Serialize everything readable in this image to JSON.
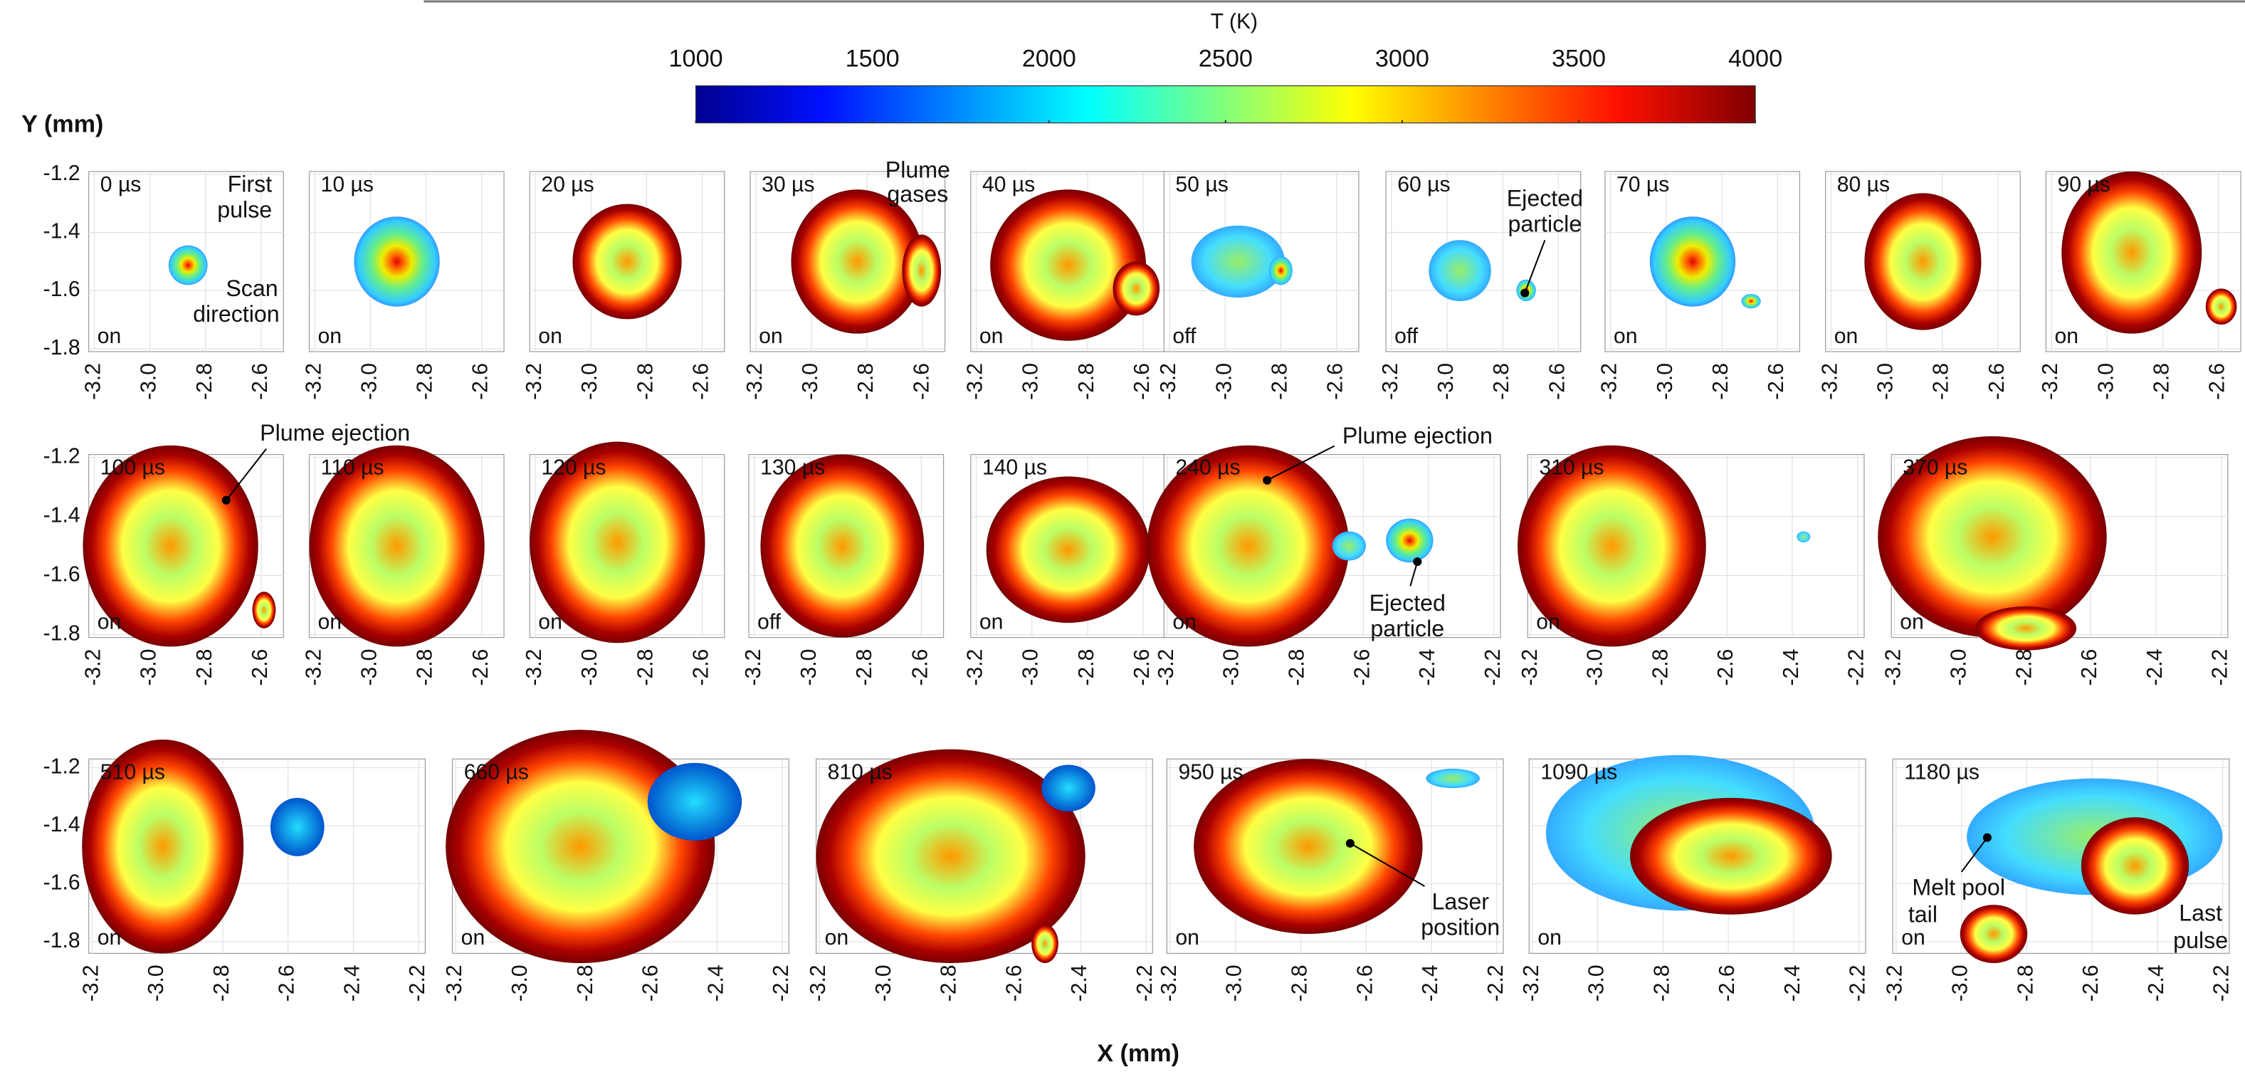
{
  "colorbar": {
    "label": "T (K)",
    "lim": [
      1000,
      4000
    ],
    "ticks": [
      1000,
      1500,
      2000,
      2500,
      3000,
      3500,
      4000
    ]
  },
  "y_label": "Y (mm)",
  "x_label": "X (mm)",
  "rows": [
    {
      "ylim": [
        -1.81,
        -1.19
      ],
      "yticks": [
        -1.2,
        -1.4,
        -1.6,
        -1.8
      ],
      "panels": [
        {
          "time": "0 µs",
          "state": "on",
          "xlim": [
            -3.22,
            -2.52
          ],
          "xticks": [
            -3.2,
            {
              "value": -3,
              "label": "-3.0"
            },
            -2.8,
            -2.6
          ]
        },
        {
          "time": "10 µs",
          "state": "on",
          "xlim": [
            -3.22,
            -2.52
          ],
          "xticks": [
            -3.2,
            {
              "value": -3,
              "label": "-3.0"
            },
            -2.8,
            -2.6
          ]
        },
        {
          "time": "20 µs",
          "state": "on",
          "xlim": [
            -3.22,
            -2.52
          ],
          "xticks": [
            -3.2,
            {
              "value": -3,
              "label": "-3.0"
            },
            -2.8,
            -2.6
          ]
        },
        {
          "time": "30 µs",
          "state": "on",
          "xlim": [
            -3.22,
            -2.52
          ],
          "xticks": [
            -3.2,
            {
              "value": -3,
              "label": "-3.0"
            },
            -2.8,
            -2.6
          ]
        },
        {
          "time": "40 µs",
          "state": "on",
          "xlim": [
            -3.22,
            -2.52
          ],
          "xticks": [
            -3.2,
            {
              "value": -3,
              "label": "-3.0"
            },
            -2.8,
            -2.6
          ]
        },
        {
          "time": "50 µs",
          "state": "off",
          "xlim": [
            -3.22,
            -2.52
          ],
          "xticks": [
            -3.2,
            {
              "value": -3,
              "label": "-3.0"
            },
            -2.8,
            -2.6
          ]
        },
        {
          "time": "60 µs",
          "state": "off",
          "xlim": [
            -3.22,
            -2.52
          ],
          "xticks": [
            -3.2,
            {
              "value": -3,
              "label": "-3.0"
            },
            -2.8,
            -2.6
          ]
        },
        {
          "time": "70 µs",
          "state": "on",
          "xlim": [
            -3.22,
            -2.52
          ],
          "xticks": [
            -3.2,
            {
              "value": -3,
              "label": "-3.0"
            },
            -2.8,
            -2.6
          ]
        },
        {
          "time": "80 µs",
          "state": "on",
          "xlim": [
            -3.22,
            -2.52
          ],
          "xticks": [
            -3.2,
            {
              "value": -3,
              "label": "-3.0"
            },
            -2.8,
            -2.6
          ]
        },
        {
          "time": "90 µs",
          "state": "on",
          "xlim": [
            -3.22,
            -2.52
          ],
          "xticks": [
            -3.2,
            {
              "value": -3,
              "label": "-3.0"
            },
            -2.8,
            -2.6
          ]
        }
      ]
    },
    {
      "ylim": [
        -1.81,
        -1.19
      ],
      "yticks": [
        -1.2,
        -1.4,
        -1.6,
        -1.8
      ],
      "panels": [
        {
          "time": "100 µs",
          "state": "on",
          "xlim": [
            -3.22,
            -2.52
          ],
          "xticks": [
            -3.2,
            {
              "value": -3,
              "label": "-3.0"
            },
            -2.8,
            -2.6
          ]
        },
        {
          "time": "110 µs",
          "state": "on",
          "xlim": [
            -3.22,
            -2.52
          ],
          "xticks": [
            -3.2,
            {
              "value": -3,
              "label": "-3.0"
            },
            -2.8,
            -2.6
          ]
        },
        {
          "time": "120 µs",
          "state": "on",
          "xlim": [
            -3.22,
            -2.52
          ],
          "xticks": [
            -3.2,
            {
              "value": -3,
              "label": "-3.0"
            },
            -2.8,
            -2.6
          ]
        },
        {
          "time": "130 µs",
          "state": "off",
          "xlim": [
            -3.22,
            -2.52
          ],
          "xticks": [
            -3.2,
            {
              "value": -3,
              "label": "-3.0"
            },
            -2.8,
            -2.6
          ]
        },
        {
          "time": "140 µs",
          "state": "on",
          "xlim": [
            -3.22,
            -2.52
          ],
          "xticks": [
            -3.2,
            {
              "value": -3,
              "label": "-3.0"
            },
            -2.8,
            -2.6
          ]
        },
        {
          "time": "240 µs",
          "state": "on",
          "xlim": [
            -3.21,
            -2.18
          ],
          "xticks": [
            -3.2,
            {
              "value": -3,
              "label": "-3.0"
            },
            -2.8,
            -2.6,
            -2.4,
            -2.2
          ]
        },
        {
          "time": "310 µs",
          "state": "on",
          "xlim": [
            -3.21,
            -2.18
          ],
          "xticks": [
            -3.2,
            {
              "value": -3,
              "label": "-3.0"
            },
            -2.8,
            -2.6,
            -2.4,
            -2.2
          ]
        },
        {
          "time": "370 µs",
          "state": "on",
          "xlim": [
            -3.21,
            -2.18
          ],
          "xticks": [
            -3.2,
            {
              "value": -3,
              "label": "-3.0"
            },
            -2.8,
            -2.6,
            -2.4,
            -2.2
          ]
        }
      ]
    },
    {
      "ylim": [
        -1.84,
        -1.17
      ],
      "yticks": [
        -1.2,
        -1.4,
        -1.6,
        -1.8
      ],
      "panels": [
        {
          "time": "510 µs",
          "state": "on",
          "xlim": [
            -3.21,
            -2.18
          ],
          "xticks": [
            -3.2,
            {
              "value": -3,
              "label": "-3.0"
            },
            -2.8,
            -2.6,
            -2.4,
            -2.2
          ]
        },
        {
          "time": "660 µs",
          "state": "on",
          "xlim": [
            -3.21,
            -2.18
          ],
          "xticks": [
            -3.2,
            {
              "value": -3,
              "label": "-3.0"
            },
            -2.8,
            -2.6,
            -2.4,
            -2.2
          ]
        },
        {
          "time": "810 µs",
          "state": "on",
          "xlim": [
            -3.21,
            -2.18
          ],
          "xticks": [
            -3.2,
            {
              "value": -3,
              "label": "-3.0"
            },
            -2.8,
            -2.6,
            -2.4,
            -2.2
          ]
        },
        {
          "time": "950 µs",
          "state": "on",
          "xlim": [
            -3.21,
            -2.18
          ],
          "xticks": [
            -3.2,
            {
              "value": -3,
              "label": "-3.0"
            },
            -2.8,
            -2.6,
            -2.4,
            -2.2
          ]
        },
        {
          "time": "1090 µs",
          "state": "on",
          "xlim": [
            -3.21,
            -2.18
          ],
          "xticks": [
            -3.2,
            {
              "value": -3,
              "label": "-3.0"
            },
            -2.8,
            -2.6,
            -2.4,
            -2.2
          ]
        },
        {
          "time": "1180 µs",
          "state": "on",
          "xlim": [
            -3.21,
            -2.18
          ],
          "xticks": [
            -3.2,
            {
              "value": -3,
              "label": "-3.0"
            },
            -2.8,
            -2.6,
            -2.4,
            -2.2
          ]
        }
      ]
    }
  ],
  "annotations": [
    {
      "lines": [
        "First",
        "pulse"
      ]
    },
    {
      "lines": [
        "Scan",
        "direction"
      ]
    },
    {
      "lines": [
        "Plume",
        "gases"
      ]
    },
    {
      "lines": [
        "Ejected",
        "particle"
      ]
    },
    {
      "lines": [
        "Plume ejection"
      ]
    },
    {
      "lines": [
        "Plume ejection"
      ]
    },
    {
      "lines": [
        "Ejected",
        "particle"
      ]
    },
    {
      "lines": [
        "Laser",
        "position"
      ]
    },
    {
      "lines": [
        "Melt pool",
        "tail"
      ]
    },
    {
      "lines": [
        "Last",
        "pulse"
      ]
    }
  ]
}
